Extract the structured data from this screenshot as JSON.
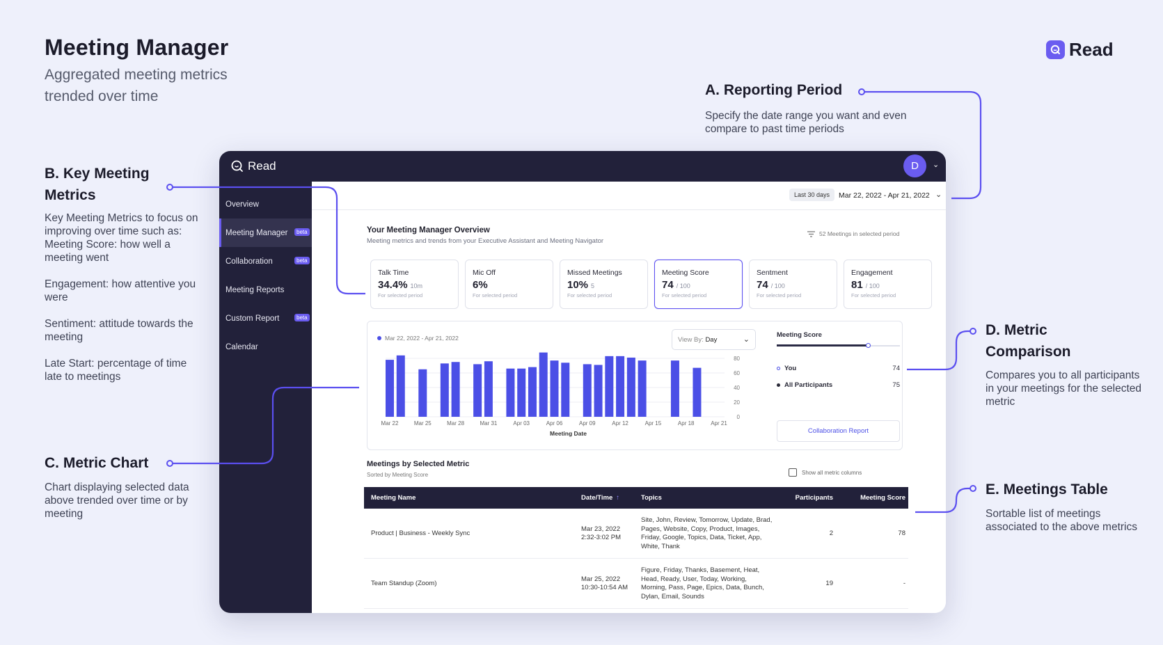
{
  "hero": {
    "title": "Meeting Manager",
    "subtitle": "Aggregated meeting metrics trended over time",
    "brand": "Read"
  },
  "notes": {
    "a": {
      "title": "A. Reporting Period",
      "body": "Specify the date range you want and even compare to past time periods"
    },
    "b": {
      "title": "B. Key Meeting Metrics",
      "intro": "Key Meeting Metrics to focus on improving over time such as:",
      "score": "Meeting Score: how well a meeting went",
      "engagement": "Engagement: how attentive you were",
      "sentiment": "Sentiment: attitude towards the meeting",
      "late": "Late Start: percentage of time late to meetings"
    },
    "c": {
      "title": "C. Metric Chart",
      "body": "Chart displaying selected data above trended over time or by meeting"
    },
    "d": {
      "title": "D. Metric Comparison",
      "body": "Compares you to all participants in your meetings for the selected metric"
    },
    "e": {
      "title": "E. Meetings Table",
      "body": "Sortable list of meetings associated to the above metrics"
    }
  },
  "app": {
    "logo": "Read",
    "avatar_initial": "D",
    "sidebar": {
      "items": [
        {
          "label": "Overview",
          "beta": ""
        },
        {
          "label": "Meeting Manager",
          "beta": "beta"
        },
        {
          "label": "Collaboration",
          "beta": "beta"
        },
        {
          "label": "Meeting Reports",
          "beta": ""
        },
        {
          "label": "Custom Report",
          "beta": "beta"
        },
        {
          "label": "Calendar",
          "beta": ""
        }
      ],
      "active_index": 1
    },
    "period": {
      "chip": "Last 30 days",
      "range": "Mar 22, 2022 - Apr 21, 2022"
    },
    "overview": {
      "title": "Your Meeting Manager Overview",
      "subtitle": "Meeting metrics and trends from your Executive Assistant and Meeting Navigator",
      "count": "52 Meetings in selected period"
    },
    "cards": [
      {
        "label": "Talk Time",
        "value": "34.4%",
        "sub": "10m",
        "foot": "For selected period"
      },
      {
        "label": "Mic Off",
        "value": "6%",
        "sub": "",
        "foot": "For selected period"
      },
      {
        "label": "Missed Meetings",
        "value": "10%",
        "sub": "5",
        "foot": "For selected period"
      },
      {
        "label": "Meeting Score",
        "value": "74",
        "sub": "/ 100",
        "foot": "For selected period"
      },
      {
        "label": "Sentment",
        "value": "74",
        "sub": "/ 100",
        "foot": "For selected period"
      },
      {
        "label": "Engagement",
        "value": "81",
        "sub": "/ 100",
        "foot": "For selected period"
      }
    ],
    "selected_card": 3,
    "view_by": {
      "label": "View By:",
      "value": "Day"
    },
    "comparison": {
      "title": "Meeting Score",
      "you_label": "You",
      "you_value": "74",
      "all_label": "All Participants",
      "all_value": "75",
      "slider_fraction": 0.74,
      "button": "Collaboration Report"
    },
    "table": {
      "title": "Meetings by Selected Metric",
      "subtitle": "Sorted by Meeting Score",
      "toggle": "Show all metric columns",
      "headers": {
        "name": "Meeting Name",
        "date": "Date/Time",
        "topics": "Topics",
        "participants": "Participants",
        "score": "Meeting Score"
      },
      "rows": [
        {
          "name": "Product | Business - Weekly Sync",
          "date": "Mar 23, 2022",
          "time": "2:32-3:02 PM",
          "topics": "Site, John, Review, Tomorrow, Update, Brad, Pages, Website, Copy, Product, Images, Friday, Google, Topics, Data, Ticket, App, White, Thank",
          "participants": "2",
          "score": "78"
        },
        {
          "name": "Team Standup (Zoom)",
          "date": "Mar 25, 2022",
          "time": "10:30-10:54 AM",
          "topics": "Figure, Friday, Thanks, Basement, Heat, Head, Ready, User, Today, Working, Morning, Pass, Page, Epics, Data, Bunch, Dylan, Email, Sounds",
          "participants": "19",
          "score": "-"
        }
      ]
    }
  },
  "chart_data": {
    "type": "bar",
    "legend": "Mar 22, 2022 - Apr 21, 2022",
    "xlabel": "Meeting Date",
    "ylabel": "",
    "ylim": [
      0,
      80
    ],
    "yticks": [
      0,
      20,
      40,
      60,
      80
    ],
    "xticks": [
      "Mar 22",
      "Mar 25",
      "Mar 28",
      "Mar 31",
      "Apr 03",
      "Apr 06",
      "Apr 09",
      "Apr 12",
      "Apr 15",
      "Apr 18",
      "Apr 21"
    ],
    "series": [
      {
        "values": [
          {
            "x": "Mar 22",
            "y": 78
          },
          {
            "x": "Mar 23",
            "y": 84
          },
          {
            "x": "Mar 25",
            "y": 65
          },
          {
            "x": "Mar 27",
            "y": 73
          },
          {
            "x": "Mar 28",
            "y": 75
          },
          {
            "x": "Mar 30",
            "y": 72
          },
          {
            "x": "Mar 31",
            "y": 76
          },
          {
            "x": "Apr 02",
            "y": 66
          },
          {
            "x": "Apr 03",
            "y": 66
          },
          {
            "x": "Apr 04",
            "y": 68
          },
          {
            "x": "Apr 05",
            "y": 88
          },
          {
            "x": "Apr 06",
            "y": 77
          },
          {
            "x": "Apr 07",
            "y": 74
          },
          {
            "x": "Apr 09",
            "y": 72
          },
          {
            "x": "Apr 10",
            "y": 71
          },
          {
            "x": "Apr 11",
            "y": 83
          },
          {
            "x": "Apr 12",
            "y": 83
          },
          {
            "x": "Apr 13",
            "y": 81
          },
          {
            "x": "Apr 14",
            "y": 77
          },
          {
            "x": "Apr 17",
            "y": 77
          },
          {
            "x": "Apr 19",
            "y": 67
          }
        ]
      }
    ],
    "color": "#4b4fe6",
    "grid": true
  }
}
